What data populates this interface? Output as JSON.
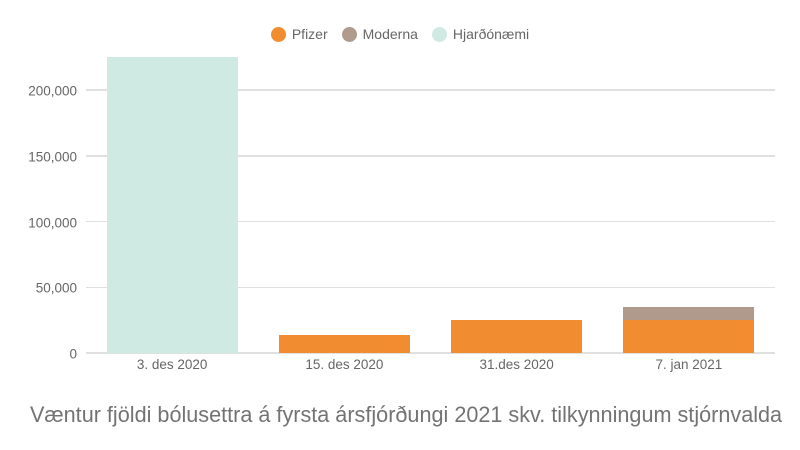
{
  "chart_data": {
    "type": "bar",
    "stacked": true,
    "title": "Væntur fjöldi bólusettra á fyrsta ársfjórðungi 2021 skv. tilkynningum stjórnvalda",
    "xlabel": "",
    "ylabel": "",
    "categories": [
      "3. des 2020",
      "15. des 2020",
      "31.des 2020",
      "7. jan 2021"
    ],
    "series": [
      {
        "name": "Pfizer",
        "color": "#f28c30",
        "values": [
          0,
          14000,
          25000,
          25000
        ]
      },
      {
        "name": "Moderna",
        "color": "#b09a8c",
        "values": [
          0,
          0,
          0,
          10000
        ]
      },
      {
        "name": "Hjarðónæmi",
        "color": "#cfe9e3",
        "values": [
          225000,
          0,
          0,
          0
        ]
      }
    ],
    "ylim": [
      0,
      225000
    ],
    "yticks": [
      0,
      50000,
      100000,
      150000,
      200000
    ],
    "ytick_labels": [
      "0",
      "50,000",
      "100,000",
      "150,000",
      "200,000"
    ],
    "grid": true,
    "legend_position": "top"
  },
  "legend": [
    {
      "label": "Pfizer",
      "color": "#f28c30"
    },
    {
      "label": "Moderna",
      "color": "#b09a8c"
    },
    {
      "label": "Hjarðónæmi",
      "color": "#cfe9e3"
    }
  ]
}
